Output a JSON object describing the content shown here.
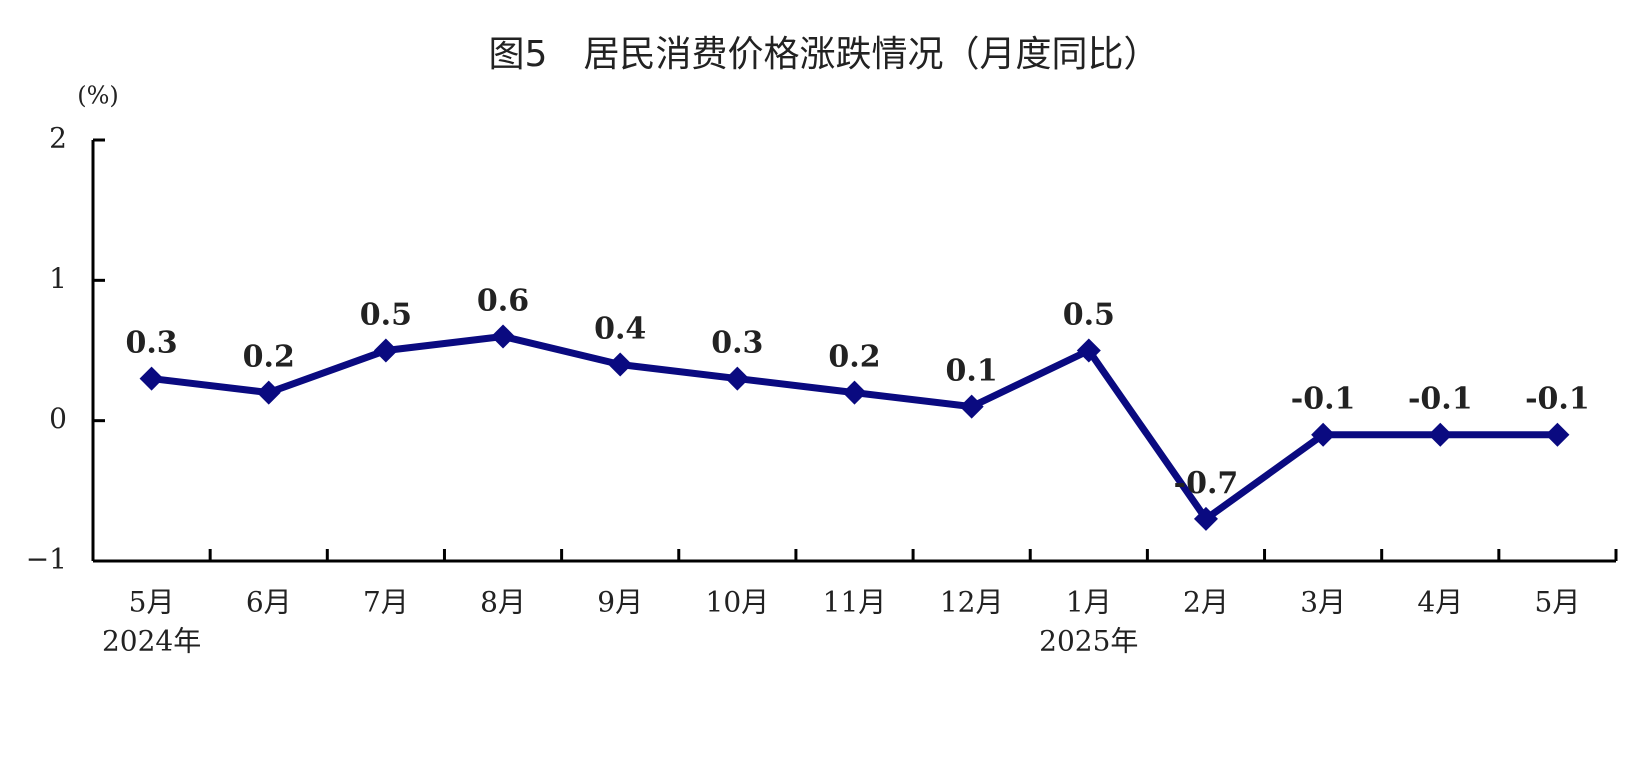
{
  "chart_data": {
    "type": "line",
    "title": "图5　居民消费价格涨跌情况（月度同比）",
    "y_unit": "(%)",
    "categories": [
      "5月",
      "6月",
      "7月",
      "8月",
      "9月",
      "10月",
      "11月",
      "12月",
      "1月",
      "2月",
      "3月",
      "4月",
      "5月"
    ],
    "year_labels": [
      "2024年",
      null,
      null,
      null,
      null,
      null,
      null,
      null,
      "2025年",
      null,
      null,
      null,
      null
    ],
    "series": [
      {
        "color": "#0a0a80",
        "values": [
          0.3,
          0.2,
          0.5,
          0.6,
          0.4,
          0.3,
          0.2,
          0.1,
          0.5,
          -0.7,
          -0.1,
          -0.1,
          -0.1
        ]
      }
    ],
    "ylim": [
      -1,
      2
    ],
    "yticks": [
      {
        "value": -1,
        "label": "−1"
      },
      0,
      1,
      2
    ],
    "grid": false
  }
}
